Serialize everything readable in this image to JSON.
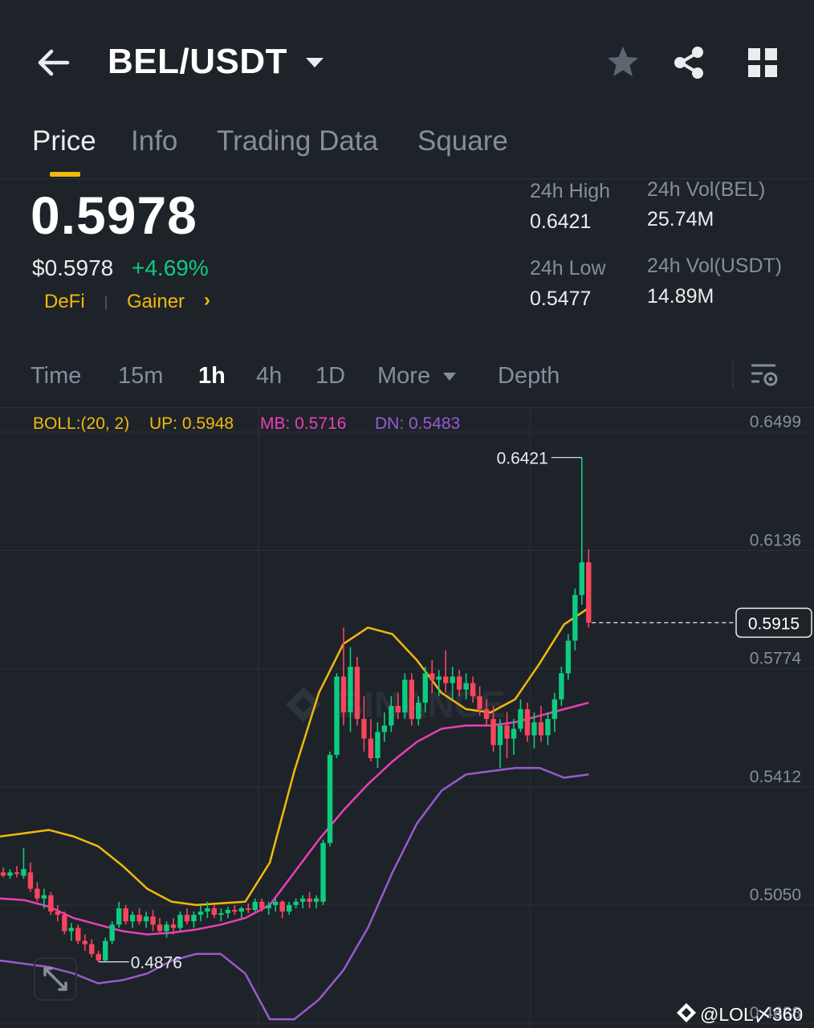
{
  "header": {
    "pair": "BEL/USDT",
    "icons": [
      "back-arrow-icon",
      "caret-down-icon",
      "star-icon",
      "share-icon",
      "grid-icon"
    ]
  },
  "tabs": [
    "Price",
    "Info",
    "Trading Data",
    "Square"
  ],
  "active_tab": "Price",
  "price": {
    "last": "0.5978",
    "usd": "$0.5978",
    "change": "+4.69%",
    "tags": [
      "DeFi",
      "Gainer"
    ],
    "tag_chevron": "›"
  },
  "stats": {
    "high_label": "24h High",
    "high_value": "0.6421",
    "low_label": "24h Low",
    "low_value": "0.5477",
    "vol_base_label": "24h Vol(BEL)",
    "vol_base_value": "25.74M",
    "vol_quote_label": "24h Vol(USDT)",
    "vol_quote_value": "14.89M"
  },
  "intervals": {
    "time": "Time",
    "m15": "15m",
    "h1": "1h",
    "h4": "4h",
    "d1": "1D",
    "more": "More",
    "depth": "Depth",
    "active": "1h"
  },
  "boll": {
    "label": "BOLL:(20, 2)",
    "up": "UP: 0.5948",
    "mb": "MB: 0.5716",
    "dn": "DN: 0.5483"
  },
  "colors": {
    "bg": "#1e2329",
    "up": "#0ecb81",
    "down": "#f6465d",
    "accent": "#f0b90b",
    "boll_up": "#f0b90b",
    "boll_mb": "#e840b8",
    "boll_dn": "#9a5ad0"
  },
  "watermark": "BINANCE",
  "credit": "@LOL〆360",
  "chart_data": {
    "type": "candlestick",
    "y_ticks": [
      "0.6499",
      "0.6136",
      "0.5774",
      "0.5412",
      "0.5050",
      "0.4688"
    ],
    "ylim": [
      0.4688,
      0.6499
    ],
    "current_price_label": "0.5915",
    "annotations": {
      "high": "0.6421",
      "low": "0.4876"
    },
    "ohlc": [
      [
        0.515,
        0.5165,
        0.5135,
        0.514
      ],
      [
        0.514,
        0.516,
        0.513,
        0.515
      ],
      [
        0.515,
        0.517,
        0.5135,
        0.5145
      ],
      [
        0.514,
        0.5225,
        0.513,
        0.516
      ],
      [
        0.515,
        0.518,
        0.509,
        0.51
      ],
      [
        0.51,
        0.512,
        0.506,
        0.507
      ],
      [
        0.507,
        0.51,
        0.504,
        0.508
      ],
      [
        0.508,
        0.509,
        0.502,
        0.503
      ],
      [
        0.503,
        0.505,
        0.5,
        0.502
      ],
      [
        0.502,
        0.503,
        0.496,
        0.497
      ],
      [
        0.497,
        0.4995,
        0.494,
        0.498
      ],
      [
        0.498,
        0.499,
        0.493,
        0.494
      ],
      [
        0.494,
        0.496,
        0.491,
        0.493
      ],
      [
        0.493,
        0.4945,
        0.489,
        0.49
      ],
      [
        0.49,
        0.491,
        0.4876,
        0.488
      ],
      [
        0.488,
        0.495,
        0.4876,
        0.494
      ],
      [
        0.494,
        0.5,
        0.493,
        0.499
      ],
      [
        0.499,
        0.506,
        0.498,
        0.504
      ],
      [
        0.504,
        0.505,
        0.499,
        0.5
      ],
      [
        0.5,
        0.503,
        0.498,
        0.502
      ],
      [
        0.502,
        0.504,
        0.499,
        0.5
      ],
      [
        0.5,
        0.503,
        0.498,
        0.5015
      ],
      [
        0.5015,
        0.5035,
        0.497,
        0.499
      ],
      [
        0.499,
        0.501,
        0.496,
        0.497
      ],
      [
        0.497,
        0.5,
        0.495,
        0.499
      ],
      [
        0.499,
        0.501,
        0.496,
        0.498
      ],
      [
        0.498,
        0.503,
        0.497,
        0.502
      ],
      [
        0.502,
        0.504,
        0.499,
        0.5
      ],
      [
        0.5,
        0.503,
        0.498,
        0.502
      ],
      [
        0.502,
        0.505,
        0.5,
        0.503
      ],
      [
        0.503,
        0.506,
        0.501,
        0.504
      ],
      [
        0.504,
        0.505,
        0.501,
        0.502
      ],
      [
        0.502,
        0.504,
        0.5,
        0.5025
      ],
      [
        0.5025,
        0.5045,
        0.501,
        0.5035
      ],
      [
        0.5035,
        0.505,
        0.502,
        0.503
      ],
      [
        0.503,
        0.5045,
        0.501,
        0.504
      ],
      [
        0.504,
        0.5055,
        0.5025,
        0.5035
      ],
      [
        0.5035,
        0.507,
        0.503,
        0.506
      ],
      [
        0.506,
        0.507,
        0.503,
        0.504
      ],
      [
        0.504,
        0.506,
        0.502,
        0.505
      ],
      [
        0.505,
        0.507,
        0.503,
        0.506
      ],
      [
        0.506,
        0.5065,
        0.501,
        0.503
      ],
      [
        0.503,
        0.506,
        0.502,
        0.505
      ],
      [
        0.505,
        0.507,
        0.504,
        0.506
      ],
      [
        0.506,
        0.508,
        0.504,
        0.507
      ],
      [
        0.507,
        0.509,
        0.504,
        0.506
      ],
      [
        0.506,
        0.508,
        0.504,
        0.507
      ],
      [
        0.506,
        0.525,
        0.505,
        0.524
      ],
      [
        0.524,
        0.552,
        0.523,
        0.551
      ],
      [
        0.551,
        0.576,
        0.55,
        0.575
      ],
      [
        0.575,
        0.59,
        0.56,
        0.564
      ],
      [
        0.564,
        0.584,
        0.558,
        0.578
      ],
      [
        0.578,
        0.581,
        0.56,
        0.562
      ],
      [
        0.562,
        0.569,
        0.552,
        0.556
      ],
      [
        0.556,
        0.562,
        0.549,
        0.55
      ],
      [
        0.55,
        0.561,
        0.547,
        0.558
      ],
      [
        0.558,
        0.564,
        0.555,
        0.56
      ],
      [
        0.56,
        0.569,
        0.558,
        0.566
      ],
      [
        0.566,
        0.57,
        0.562,
        0.564
      ],
      [
        0.564,
        0.576,
        0.562,
        0.574
      ],
      [
        0.574,
        0.576,
        0.56,
        0.562
      ],
      [
        0.562,
        0.569,
        0.56,
        0.567
      ],
      [
        0.567,
        0.578,
        0.564,
        0.576
      ],
      [
        0.576,
        0.58,
        0.57,
        0.574
      ],
      [
        0.574,
        0.577,
        0.569,
        0.575
      ],
      [
        0.575,
        0.583,
        0.57,
        0.573
      ],
      [
        0.573,
        0.578,
        0.568,
        0.575
      ],
      [
        0.575,
        0.577,
        0.569,
        0.571
      ],
      [
        0.571,
        0.576,
        0.568,
        0.573
      ],
      [
        0.573,
        0.575,
        0.567,
        0.569
      ],
      [
        0.569,
        0.572,
        0.563,
        0.565
      ],
      [
        0.565,
        0.568,
        0.56,
        0.562
      ],
      [
        0.562,
        0.566,
        0.552,
        0.554
      ],
      [
        0.554,
        0.562,
        0.547,
        0.56
      ],
      [
        0.56,
        0.564,
        0.55,
        0.556
      ],
      [
        0.556,
        0.562,
        0.551,
        0.559
      ],
      [
        0.559,
        0.568,
        0.558,
        0.565
      ],
      [
        0.565,
        0.567,
        0.555,
        0.557
      ],
      [
        0.557,
        0.564,
        0.553,
        0.561
      ],
      [
        0.561,
        0.566,
        0.555,
        0.557
      ],
      [
        0.557,
        0.564,
        0.554,
        0.562
      ],
      [
        0.562,
        0.57,
        0.558,
        0.568
      ],
      [
        0.568,
        0.578,
        0.566,
        0.576
      ],
      [
        0.576,
        0.588,
        0.574,
        0.586
      ],
      [
        0.586,
        0.602,
        0.583,
        0.6
      ],
      [
        0.6,
        0.6421,
        0.597,
        0.61
      ],
      [
        0.61,
        0.614,
        0.59,
        0.5915
      ]
    ],
    "boll_up": [
      0.526,
      0.527,
      0.528,
      0.526,
      0.523,
      0.517,
      0.51,
      0.506,
      0.505,
      0.5055,
      0.506,
      0.518,
      0.546,
      0.57,
      0.585,
      0.59,
      0.588,
      0.58,
      0.57,
      0.565,
      0.564,
      0.568,
      0.579,
      0.591,
      0.596
    ],
    "boll_mb": [
      0.507,
      0.5065,
      0.5045,
      0.501,
      0.499,
      0.497,
      0.496,
      0.4965,
      0.4975,
      0.499,
      0.501,
      0.505,
      0.515,
      0.525,
      0.534,
      0.542,
      0.549,
      0.555,
      0.559,
      0.56,
      0.56,
      0.561,
      0.563,
      0.565,
      0.567
    ],
    "boll_dn": [
      0.488,
      0.487,
      0.486,
      0.484,
      0.481,
      0.482,
      0.484,
      0.488,
      0.49,
      0.49,
      0.484,
      0.47,
      0.47,
      0.476,
      0.485,
      0.498,
      0.515,
      0.53,
      0.54,
      0.545,
      0.546,
      0.547,
      0.547,
      0.544,
      0.545
    ]
  }
}
